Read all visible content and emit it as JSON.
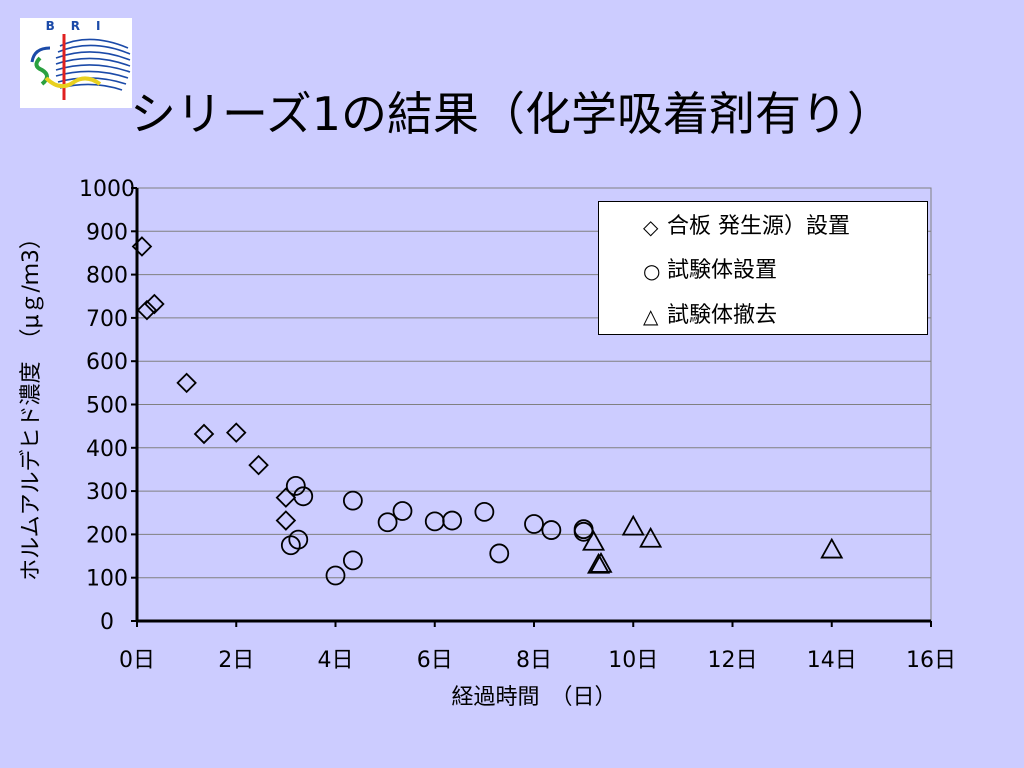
{
  "slide": {
    "title": "シリーズ1の結果（化学吸着剤有り）",
    "logo_text": "BRI",
    "background_color": "#ccccff"
  },
  "legend": {
    "items": [
      {
        "marker": "diamond",
        "label": "合板  発生源）設置"
      },
      {
        "marker": "circle",
        "label": "試験体設置"
      },
      {
        "marker": "triangle",
        "label": "試験体撤去"
      }
    ]
  },
  "chart_data": {
    "type": "scatter",
    "title": "",
    "xlabel": "経過時間　（日）",
    "ylabel": "ホルムアルデヒド濃度　（μｇ/ｍ3）",
    "xlim": [
      0,
      16
    ],
    "ylim": [
      0,
      1000
    ],
    "x_ticks": [
      0,
      2,
      4,
      6,
      8,
      10,
      12,
      14,
      16
    ],
    "x_tick_labels": [
      "0日",
      "2日",
      "4日",
      "6日",
      "8日",
      "10日",
      "12日",
      "14日",
      "16日"
    ],
    "y_ticks": [
      0,
      100,
      200,
      300,
      400,
      500,
      600,
      700,
      800,
      900,
      1000
    ],
    "y_tick_labels": [
      "0",
      "100",
      "200",
      "300",
      "400",
      "500",
      "600",
      "700",
      "800",
      "900",
      "1000"
    ],
    "grid": true,
    "legend_position": "top-right",
    "series": [
      {
        "name": "合板  発生源）設置",
        "marker": "diamond",
        "points": [
          [
            0.1,
            865
          ],
          [
            0.2,
            718
          ],
          [
            0.35,
            732
          ],
          [
            1.0,
            550
          ],
          [
            1.35,
            432
          ],
          [
            2.0,
            435
          ],
          [
            2.45,
            360
          ],
          [
            3.0,
            285
          ],
          [
            3.0,
            232
          ]
        ]
      },
      {
        "name": "試験体設置",
        "marker": "circle",
        "points": [
          [
            3.2,
            312
          ],
          [
            3.35,
            288
          ],
          [
            3.1,
            175
          ],
          [
            3.25,
            188
          ],
          [
            4.35,
            278
          ],
          [
            4.0,
            105
          ],
          [
            4.35,
            140
          ],
          [
            5.05,
            228
          ],
          [
            5.35,
            254
          ],
          [
            6.0,
            230
          ],
          [
            6.35,
            232
          ],
          [
            7.0,
            252
          ],
          [
            7.3,
            156
          ],
          [
            8.0,
            224
          ],
          [
            8.35,
            210
          ],
          [
            9.0,
            212
          ],
          [
            9.0,
            206
          ]
        ]
      },
      {
        "name": "試験体撤去",
        "marker": "triangle",
        "points": [
          [
            9.2,
            183
          ],
          [
            9.3,
            130
          ],
          [
            9.35,
            132
          ],
          [
            10.0,
            218
          ],
          [
            10.35,
            190
          ],
          [
            14.0,
            165
          ]
        ]
      }
    ]
  }
}
